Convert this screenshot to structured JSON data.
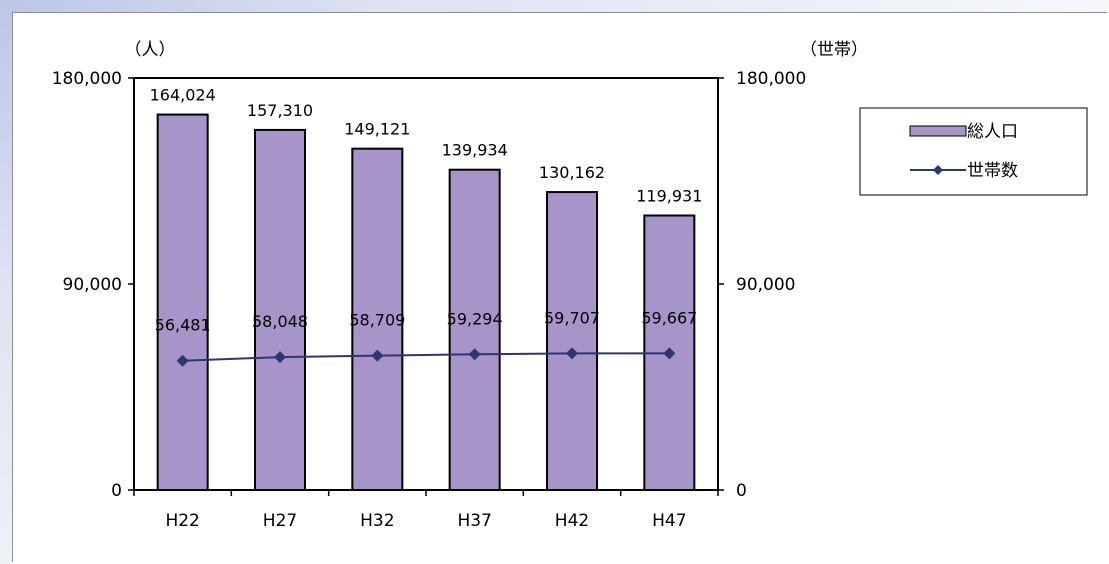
{
  "chart_data": {
    "type": "bar",
    "categories": [
      "H22",
      "H27",
      "H32",
      "H37",
      "H42",
      "H47"
    ],
    "series": [
      {
        "name": "総人口",
        "type": "bar",
        "axis": "left",
        "values": [
          164024,
          157310,
          149121,
          139934,
          130162,
          119931
        ],
        "labels": [
          "164,024",
          "157,310",
          "149,121",
          "139,934",
          "130,162",
          "119,931"
        ],
        "color": "#a794c8"
      },
      {
        "name": "世帯数",
        "type": "line",
        "axis": "right",
        "values": [
          56481,
          58048,
          58709,
          59294,
          59707,
          59667
        ],
        "labels": [
          "56,481",
          "58,048",
          "58,709",
          "59,294",
          "59,707",
          "59,667"
        ],
        "color": "#2e3573"
      }
    ],
    "y_left": {
      "unit": "（人）",
      "ylim": [
        0,
        180000
      ],
      "ticks": [
        0,
        90000,
        180000
      ],
      "tick_labels": [
        "0",
        "90,000",
        "180,000"
      ]
    },
    "y_right": {
      "unit": "（世帯）",
      "ylim": [
        0,
        180000
      ],
      "ticks": [
        0,
        90000,
        180000
      ],
      "tick_labels": [
        "0",
        "90,000",
        "180,000"
      ]
    },
    "legend_position": "top-right",
    "grid": false
  }
}
